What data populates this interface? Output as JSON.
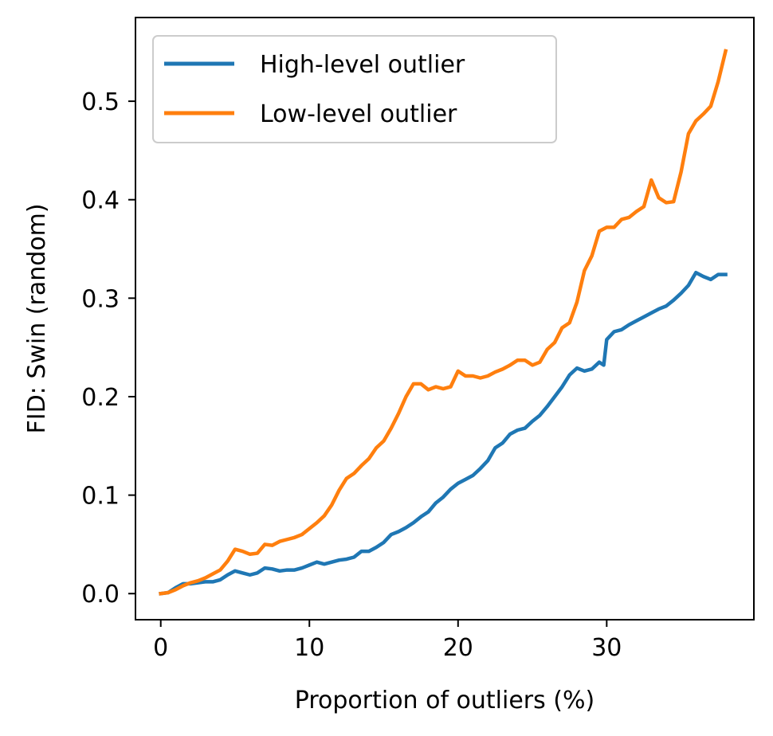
{
  "chart_data": {
    "type": "line",
    "title": "",
    "xlabel": "Proportion of outliers (%)",
    "ylabel": "FID: Swin (random)",
    "xlim": [
      -1.7,
      39.9
    ],
    "ylim": [
      -0.0265,
      0.585
    ],
    "xticks": [
      0,
      10,
      20,
      30
    ],
    "xtick_labels": [
      "0",
      "10",
      "20",
      "30"
    ],
    "yticks": [
      0.0,
      0.1,
      0.2,
      0.3,
      0.4,
      0.5
    ],
    "ytick_labels": [
      "0.0",
      "0.1",
      "0.2",
      "0.3",
      "0.4",
      "0.5"
    ],
    "grid": false,
    "legend_position": "top-left",
    "series": [
      {
        "name": "High-level outlier",
        "color": "#1f77b4",
        "points": [
          [
            0,
            0.0
          ],
          [
            0.5,
            0.001
          ],
          [
            1,
            0.006
          ],
          [
            1.5,
            0.01
          ],
          [
            2,
            0.01
          ],
          [
            2.5,
            0.011
          ],
          [
            3,
            0.012
          ],
          [
            3.5,
            0.012
          ],
          [
            4,
            0.014
          ],
          [
            4.5,
            0.019
          ],
          [
            5,
            0.023
          ],
          [
            5.5,
            0.021
          ],
          [
            6,
            0.019
          ],
          [
            6.5,
            0.021
          ],
          [
            7,
            0.026
          ],
          [
            7.5,
            0.025
          ],
          [
            8,
            0.023
          ],
          [
            8.5,
            0.024
          ],
          [
            9,
            0.024
          ],
          [
            9.5,
            0.026
          ],
          [
            10,
            0.029
          ],
          [
            10.5,
            0.032
          ],
          [
            11,
            0.03
          ],
          [
            11.5,
            0.032
          ],
          [
            12,
            0.034
          ],
          [
            12.5,
            0.035
          ],
          [
            13,
            0.037
          ],
          [
            13.5,
            0.043
          ],
          [
            14,
            0.043
          ],
          [
            14.5,
            0.047
          ],
          [
            15,
            0.052
          ],
          [
            15.5,
            0.06
          ],
          [
            16,
            0.063
          ],
          [
            16.5,
            0.067
          ],
          [
            17,
            0.072
          ],
          [
            17.5,
            0.078
          ],
          [
            18,
            0.083
          ],
          [
            18.5,
            0.092
          ],
          [
            19,
            0.098
          ],
          [
            19.5,
            0.106
          ],
          [
            20,
            0.112
          ],
          [
            20.5,
            0.116
          ],
          [
            21,
            0.12
          ],
          [
            21.5,
            0.127
          ],
          [
            22,
            0.135
          ],
          [
            22.5,
            0.148
          ],
          [
            23,
            0.153
          ],
          [
            23.5,
            0.162
          ],
          [
            24,
            0.166
          ],
          [
            24.5,
            0.168
          ],
          [
            25,
            0.175
          ],
          [
            25.5,
            0.181
          ],
          [
            26,
            0.19
          ],
          [
            26.5,
            0.2
          ],
          [
            27,
            0.21
          ],
          [
            27.5,
            0.222
          ],
          [
            28,
            0.229
          ],
          [
            28.5,
            0.226
          ],
          [
            29,
            0.228
          ],
          [
            29.5,
            0.235
          ],
          [
            29.8,
            0.232
          ],
          [
            30,
            0.258
          ],
          [
            30.5,
            0.266
          ],
          [
            31,
            0.268
          ],
          [
            31.5,
            0.273
          ],
          [
            32,
            0.277
          ],
          [
            32.5,
            0.281
          ],
          [
            33,
            0.285
          ],
          [
            33.5,
            0.289
          ],
          [
            34,
            0.292
          ],
          [
            34.5,
            0.298
          ],
          [
            35,
            0.305
          ],
          [
            35.5,
            0.313
          ],
          [
            36,
            0.326
          ],
          [
            36.5,
            0.322
          ],
          [
            37,
            0.319
          ],
          [
            37.5,
            0.324
          ],
          [
            38,
            0.324
          ]
        ]
      },
      {
        "name": "Low-level outlier",
        "color": "#ff7f0e",
        "points": [
          [
            0,
            0.0
          ],
          [
            0.5,
            0.001
          ],
          [
            1,
            0.004
          ],
          [
            1.5,
            0.008
          ],
          [
            2,
            0.011
          ],
          [
            2.5,
            0.013
          ],
          [
            3,
            0.016
          ],
          [
            3.5,
            0.02
          ],
          [
            4,
            0.024
          ],
          [
            4.5,
            0.033
          ],
          [
            5,
            0.045
          ],
          [
            5.5,
            0.043
          ],
          [
            6,
            0.04
          ],
          [
            6.5,
            0.041
          ],
          [
            7,
            0.05
          ],
          [
            7.5,
            0.049
          ],
          [
            8,
            0.053
          ],
          [
            8.5,
            0.055
          ],
          [
            9,
            0.057
          ],
          [
            9.5,
            0.06
          ],
          [
            10,
            0.066
          ],
          [
            10.5,
            0.072
          ],
          [
            11,
            0.079
          ],
          [
            11.5,
            0.09
          ],
          [
            12,
            0.105
          ],
          [
            12.5,
            0.117
          ],
          [
            13,
            0.122
          ],
          [
            13.5,
            0.13
          ],
          [
            14,
            0.137
          ],
          [
            14.5,
            0.148
          ],
          [
            15,
            0.155
          ],
          [
            15.5,
            0.168
          ],
          [
            16,
            0.183
          ],
          [
            16.5,
            0.2
          ],
          [
            17,
            0.213
          ],
          [
            17.5,
            0.213
          ],
          [
            18,
            0.207
          ],
          [
            18.5,
            0.21
          ],
          [
            19,
            0.208
          ],
          [
            19.5,
            0.21
          ],
          [
            20,
            0.226
          ],
          [
            20.5,
            0.221
          ],
          [
            21,
            0.221
          ],
          [
            21.5,
            0.219
          ],
          [
            22,
            0.221
          ],
          [
            22.5,
            0.225
          ],
          [
            23,
            0.228
          ],
          [
            23.5,
            0.232
          ],
          [
            24,
            0.237
          ],
          [
            24.5,
            0.237
          ],
          [
            25,
            0.232
          ],
          [
            25.5,
            0.235
          ],
          [
            26,
            0.248
          ],
          [
            26.5,
            0.255
          ],
          [
            27,
            0.27
          ],
          [
            27.5,
            0.275
          ],
          [
            28,
            0.296
          ],
          [
            28.5,
            0.328
          ],
          [
            29,
            0.343
          ],
          [
            29.5,
            0.368
          ],
          [
            30,
            0.372
          ],
          [
            30.5,
            0.372
          ],
          [
            31,
            0.38
          ],
          [
            31.5,
            0.382
          ],
          [
            32,
            0.388
          ],
          [
            32.5,
            0.393
          ],
          [
            33,
            0.42
          ],
          [
            33.5,
            0.402
          ],
          [
            34,
            0.397
          ],
          [
            34.5,
            0.398
          ],
          [
            35,
            0.428
          ],
          [
            35.5,
            0.467
          ],
          [
            36,
            0.48
          ],
          [
            36.5,
            0.487
          ],
          [
            37,
            0.495
          ],
          [
            37.5,
            0.52
          ],
          [
            38,
            0.551
          ]
        ]
      }
    ]
  }
}
